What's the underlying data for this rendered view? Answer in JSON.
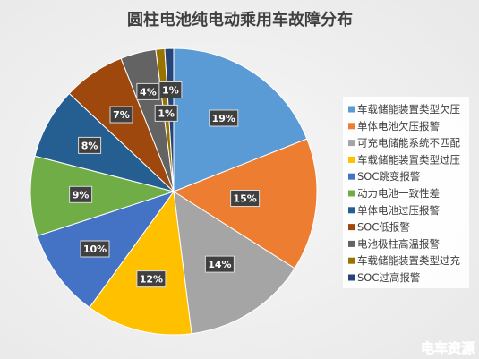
{
  "chart_data": {
    "type": "pie",
    "title": "圆柱电池纯电动乘用车故障分布",
    "categories": [
      "车载储能装置类型欠压",
      "单体电池欠压报警",
      "可充电储能系统不匹配",
      "车载储能装置类型过压",
      "SOC跳变报警",
      "动力电池一致性差",
      "单体电池过压报警",
      "SOC低报警",
      "电池极柱高温报警",
      "车载储能装置类型过充",
      "SOC过高报警"
    ],
    "values": [
      19,
      15,
      14,
      12,
      10,
      9,
      8,
      7,
      4,
      1,
      1
    ],
    "data_labels": [
      "19%",
      "15%",
      "14%",
      "12%",
      "10%",
      "9%",
      "8%",
      "7%",
      "4%",
      "1%",
      "1%"
    ],
    "colors": [
      "#5B9BD5",
      "#ED7D31",
      "#A5A5A5",
      "#FFC000",
      "#4472C4",
      "#70AD47",
      "#255E91",
      "#9E480E",
      "#636363",
      "#997300",
      "#264478"
    ],
    "legend_position": "right",
    "direction": "clockwise"
  },
  "watermark": "电车资源"
}
